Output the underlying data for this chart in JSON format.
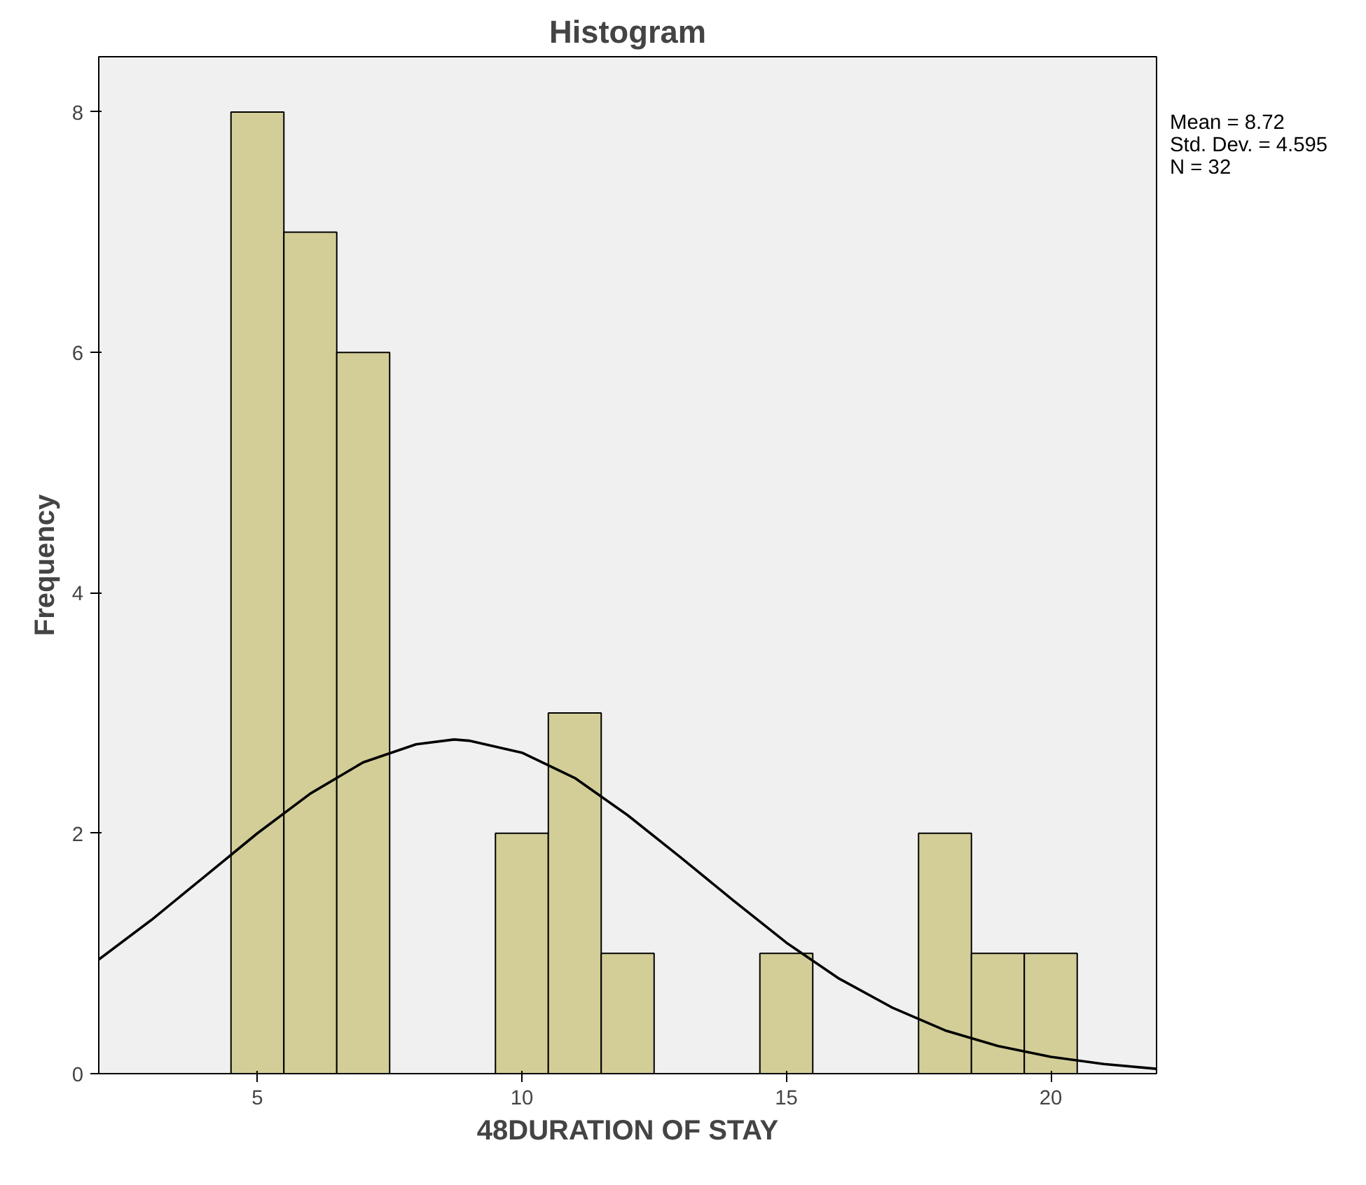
{
  "chart_data": {
    "type": "histogram",
    "title": "Histogram",
    "xlabel": "48DURATION OF STAY",
    "ylabel": "Frequency",
    "bins": [
      4.5,
      5.5,
      6.5,
      7.5,
      8.5,
      9.5,
      10.5,
      11.5,
      12.5,
      13.5,
      14.5,
      15.5,
      16.5,
      17.5,
      18.5,
      19.5,
      20.5
    ],
    "values": [
      8,
      7,
      6,
      0,
      0,
      2,
      3,
      1,
      0,
      0,
      1,
      0,
      0,
      2,
      1,
      1
    ],
    "color": "#d3ce97",
    "series": [
      {
        "type": "line",
        "color": "#000000",
        "x": [
          2,
          3,
          4,
          5,
          6,
          7,
          8,
          8.72,
          9,
          10,
          11,
          12,
          13,
          14,
          15,
          16,
          17,
          18,
          19,
          20,
          21,
          22
        ],
        "values": [
          0.95,
          1.28,
          1.64,
          2.0,
          2.33,
          2.59,
          2.74,
          2.78,
          2.77,
          2.67,
          2.46,
          2.15,
          1.8,
          1.44,
          1.09,
          0.79,
          0.55,
          0.36,
          0.23,
          0.14,
          0.08,
          0.04
        ]
      }
    ],
    "xlim": [
      2,
      22
    ],
    "ylim": [
      0,
      8.46
    ],
    "xticks": [
      5,
      10,
      15,
      20
    ],
    "yticks": [
      0,
      2,
      4,
      6,
      8
    ],
    "annotations": [
      "Mean = 8.72",
      "Std. Dev. = 4.595",
      "N = 32"
    ]
  }
}
